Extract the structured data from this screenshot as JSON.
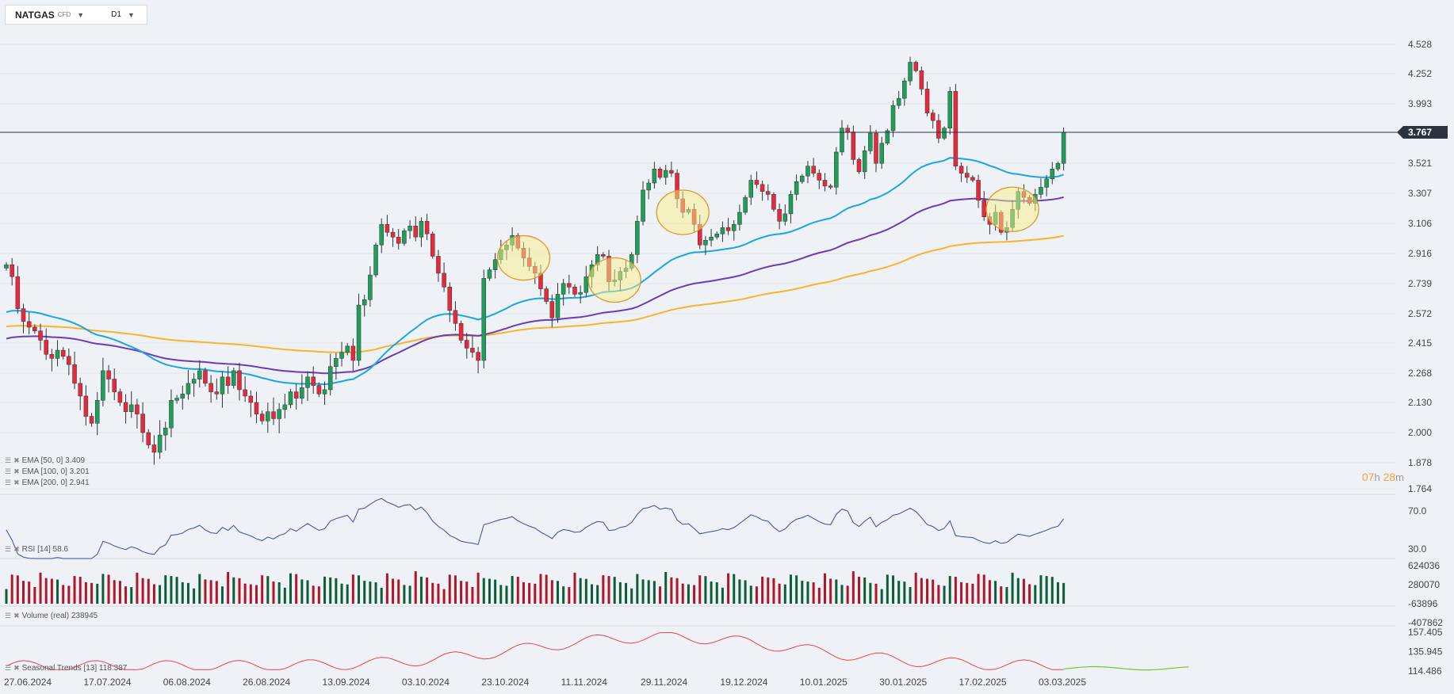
{
  "toolbar": {
    "symbol": "NATGAS",
    "instrument_type": "CFD",
    "timeframe": "D1",
    "symbol_caret_icon": "caret-down-icon",
    "timeframe_caret_icon": "caret-down-icon"
  },
  "colors": {
    "up": "#1f9e5a",
    "down": "#e8283c",
    "ema50": "#1aa7e0",
    "ema100": "#6a3cb8",
    "ema200": "#f7b42e",
    "rsi": "#3b4a9c",
    "volume_up": "#0f5d36",
    "volume_down": "#b01528",
    "seasonal_past": "#e8434f",
    "seasonal_future": "#7fbf3f"
  },
  "legend": {
    "ema50": "EMA  [50,  0]  3.409",
    "ema100": "EMA  [100,  0]  3.201",
    "ema200": "EMA  [200,  0]  2.941",
    "rsi": "RSI  [14]  58.6",
    "volume": "Volume  (real)  238945",
    "seasonal": "Seasonal  Trends  [13]  118.387",
    "icons": [
      "list-icon",
      "close-icon"
    ]
  },
  "countdown": {
    "hours": "07",
    "h_unit": "h",
    "minutes": "28",
    "m_unit": "m"
  },
  "chart_data": {
    "type": "candlestick",
    "instrument": "NATGAS",
    "timeframe": "D1",
    "current_price": "3.767",
    "current_price_value": 3.767,
    "price_ticks": [
      "4.528",
      "4.252",
      "3.993",
      "3.521",
      "3.307",
      "3.106",
      "2.916",
      "2.739",
      "2.572",
      "2.415",
      "2.268",
      "2.130",
      "2.000",
      "1.878",
      "1.764"
    ],
    "price_tick_values": [
      4.528,
      4.252,
      3.993,
      3.521,
      3.307,
      3.106,
      2.916,
      2.739,
      2.572,
      2.415,
      2.268,
      2.13,
      2.0,
      1.878,
      1.764
    ],
    "x_ticks": [
      "27.06.2024",
      "17.07.2024",
      "06.08.2024",
      "26.08.2024",
      "13.09.2024",
      "03.10.2024",
      "23.10.2024",
      "11.11.2024",
      "29.11.2024",
      "19.12.2024",
      "10.01.2025",
      "30.01.2025",
      "17.02.2025",
      "03.03.2025"
    ],
    "x_tick_positions": [
      0,
      14,
      28,
      42,
      56,
      70,
      84,
      98,
      112,
      126,
      140,
      154,
      168,
      182
    ],
    "closes": [
      2.85,
      2.78,
      2.6,
      2.53,
      2.5,
      2.48,
      2.43,
      2.36,
      2.34,
      2.38,
      2.35,
      2.31,
      2.22,
      2.16,
      2.07,
      2.04,
      2.14,
      2.28,
      2.24,
      2.18,
      2.13,
      2.09,
      2.12,
      2.08,
      2.0,
      1.95,
      1.92,
      1.99,
      2.02,
      2.14,
      2.15,
      2.17,
      2.22,
      2.24,
      2.28,
      2.22,
      2.18,
      2.17,
      2.25,
      2.21,
      2.28,
      2.19,
      2.16,
      2.13,
      2.08,
      2.05,
      2.09,
      2.06,
      2.1,
      2.12,
      2.18,
      2.15,
      2.2,
      2.25,
      2.21,
      2.17,
      2.19,
      2.3,
      2.34,
      2.37,
      2.4,
      2.33,
      2.62,
      2.65,
      2.79,
      2.97,
      3.1,
      3.05,
      3.02,
      2.98,
      3.06,
      3.09,
      3.02,
      3.12,
      3.04,
      2.9,
      2.8,
      2.72,
      2.59,
      2.52,
      2.43,
      2.39,
      2.37,
      2.33,
      2.77,
      2.82,
      2.88,
      2.94,
      2.97,
      3.03,
      2.95,
      2.89,
      2.84,
      2.8,
      2.71,
      2.64,
      2.55,
      2.68,
      2.74,
      2.72,
      2.68,
      2.69,
      2.78,
      2.85,
      2.91,
      2.9,
      2.75,
      2.76,
      2.81,
      2.83,
      2.91,
      3.12,
      3.33,
      3.38,
      3.48,
      3.42,
      3.47,
      3.45,
      3.27,
      3.18,
      3.2,
      3.1,
      2.97,
      3.0,
      3.02,
      3.04,
      3.08,
      3.06,
      3.1,
      3.18,
      3.28,
      3.4,
      3.37,
      3.32,
      3.3,
      3.2,
      3.12,
      3.17,
      3.3,
      3.39,
      3.43,
      3.5,
      3.45,
      3.4,
      3.36,
      3.35,
      3.61,
      3.8,
      3.77,
      3.55,
      3.46,
      3.62,
      3.76,
      3.52,
      3.68,
      3.78,
      3.98,
      4.04,
      4.19,
      4.36,
      4.28,
      4.12,
      3.92,
      3.86,
      3.72,
      3.8,
      4.1,
      3.5,
      3.45,
      3.42,
      3.4,
      3.26,
      3.15,
      3.1,
      3.18,
      3.05,
      3.08,
      3.2,
      3.32,
      3.28,
      3.24,
      3.3,
      3.35,
      3.41,
      3.48,
      3.52,
      3.767
    ],
    "ema50": {
      "label": "EMA [50, 0]",
      "last": 3.409
    },
    "ema100": {
      "label": "EMA [100, 0]",
      "last": 3.201
    },
    "ema200": {
      "label": "EMA [200, 0]",
      "last": 2.941
    },
    "highlighted_bars": [
      91,
      107,
      119,
      177
    ],
    "rsi": {
      "period": 14,
      "last": 58.6,
      "ticks": [
        "70.0",
        "30.0"
      ],
      "tick_values": [
        70,
        30
      ]
    },
    "volume": {
      "type": "real",
      "last": 238945,
      "ticks": [
        "624036",
        "280070",
        "-63896",
        "-407862"
      ],
      "tick_values": [
        624036,
        280070,
        -63896,
        -407862
      ]
    },
    "seasonal": {
      "period": 13,
      "last": 118.387,
      "ticks": [
        "157.405",
        "135.945",
        "114.486"
      ],
      "tick_values": [
        157.405,
        135.945,
        114.486
      ]
    }
  }
}
